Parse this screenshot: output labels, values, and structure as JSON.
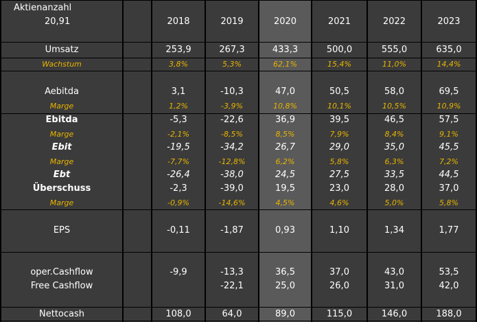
{
  "header": {
    "share_count_label": "Aktienanzahl",
    "share_count_value": "20,91",
    "years": [
      "2018",
      "2019",
      "2020",
      "2021",
      "2022",
      "2023"
    ]
  },
  "rows": {
    "umsatz": {
      "label": "Umsatz",
      "values": [
        "253,9",
        "267,3",
        "433,3",
        "500,0",
        "555,0",
        "635,0"
      ]
    },
    "wachstum": {
      "label": "Wachstum",
      "values": [
        "3,8%",
        "5,3%",
        "62,1%",
        "15,4%",
        "11,0%",
        "14,4%"
      ]
    },
    "aebitda": {
      "label": "Aebitda",
      "values": [
        "3,1",
        "-10,3",
        "47,0",
        "50,5",
        "58,0",
        "69,5"
      ]
    },
    "aebitda_marge": {
      "label": "Marge",
      "values": [
        "1,2%",
        "-3,9%",
        "10,8%",
        "10,1%",
        "10,5%",
        "10,9%"
      ]
    },
    "ebitda": {
      "label": "Ebitda",
      "values": [
        "-5,3",
        "-22,6",
        "36,9",
        "39,5",
        "46,5",
        "57,5"
      ]
    },
    "ebitda_marge": {
      "label": "Marge",
      "values": [
        "-2,1%",
        "-8,5%",
        "8,5%",
        "7,9%",
        "8,4%",
        "9,1%"
      ]
    },
    "ebit": {
      "label": "Ebit",
      "values": [
        "-19,5",
        "-34,2",
        "26,7",
        "29,0",
        "35,0",
        "45,5"
      ]
    },
    "ebit_marge": {
      "label": "Marge",
      "values": [
        "-7,7%",
        "-12,8%",
        "6,2%",
        "5,8%",
        "6,3%",
        "7,2%"
      ]
    },
    "ebt": {
      "label": "Ebt",
      "values": [
        "-26,4",
        "-38,0",
        "24,5",
        "27,5",
        "33,5",
        "44,5"
      ]
    },
    "ueberschuss": {
      "label": "Überschuss",
      "values": [
        "-2,3",
        "-39,0",
        "19,5",
        "23,0",
        "28,0",
        "37,0"
      ]
    },
    "ueberschuss_marge": {
      "label": "Marge",
      "values": [
        "-0,9%",
        "-14,6%",
        "4,5%",
        "4,6%",
        "5,0%",
        "5,8%"
      ]
    },
    "eps": {
      "label": "EPS",
      "values": [
        "-0,11",
        "-1,87",
        "0,93",
        "1,10",
        "1,34",
        "1,77"
      ]
    },
    "oper_cashflow": {
      "label": "oper.Cashflow",
      "values": [
        "-9,9",
        "-13,3",
        "36,5",
        "37,0",
        "43,0",
        "53,5"
      ]
    },
    "free_cashflow": {
      "label": "Free Cashflow",
      "values": [
        "",
        "-22,1",
        "25,0",
        "26,0",
        "31,0",
        "42,0"
      ]
    },
    "nettocash": {
      "label": "Nettocash",
      "values": [
        "108,0",
        "64,0",
        "89,0",
        "115,0",
        "146,0",
        "188,0"
      ]
    }
  },
  "colors": {
    "background": "#3b3b3b",
    "highlight_2020": "#5a5a5a",
    "accent_text": "#e8b400",
    "grid": "#000000"
  }
}
